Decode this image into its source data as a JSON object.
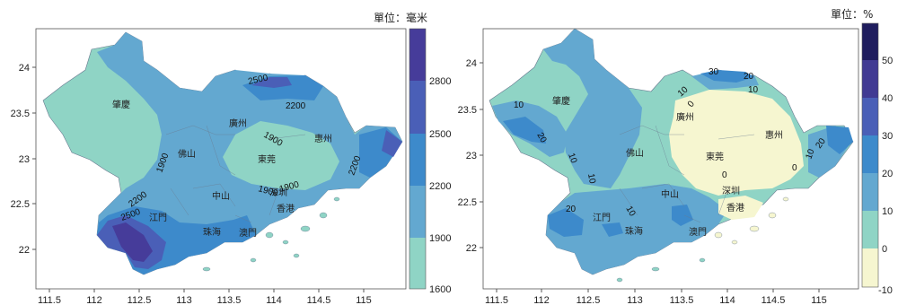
{
  "colors": {
    "left_bands": [
      "#8fd4c5",
      "#63a8d0",
      "#3d8acb",
      "#4a5fb7",
      "#463c9a"
    ],
    "right_bands": [
      "#f6f6d0",
      "#8fd4c5",
      "#63a8d0",
      "#3d8acb",
      "#4a5fb7",
      "#413a93",
      "#1f1d5e"
    ],
    "border": "#555555",
    "land_line": "#7a8aa0"
  },
  "left_map": {
    "unit_label": "單位：毫米",
    "x_ticks": [
      "111.5",
      "112",
      "112.5",
      "113",
      "113.5",
      "114",
      "114.5",
      "115"
    ],
    "y_ticks": [
      "24",
      "23.5",
      "23",
      "22.5",
      "22"
    ],
    "colorbar_ticks": [
      "2800",
      "2500",
      "2200",
      "1900",
      "1600"
    ],
    "cities": [
      "肇慶",
      "廣州",
      "惠州",
      "佛山",
      "東莞",
      "中山",
      "江門",
      "珠海",
      "澳門",
      "香港",
      "深圳"
    ],
    "contours": [
      "2500",
      "2200",
      "1900",
      "1900",
      "2200",
      "1900",
      "1900",
      "2200",
      "2500"
    ]
  },
  "right_map": {
    "unit_label": "單位：%",
    "x_ticks": [
      "111.5",
      "112",
      "112.5",
      "113",
      "113.5",
      "114",
      "114.5",
      "115"
    ],
    "y_ticks": [
      "24",
      "23.5",
      "23",
      "22.5",
      "22"
    ],
    "colorbar_ticks": [
      "50",
      "40",
      "30",
      "20",
      "10",
      "0",
      "-10"
    ],
    "cities": [
      "肇慶",
      "廣州",
      "惠州",
      "佛山",
      "東莞",
      "中山",
      "深圳",
      "江門",
      "珠海",
      "澳門",
      "香港"
    ],
    "contours": [
      "30",
      "20",
      "10",
      "10",
      "10",
      "10",
      "20",
      "0",
      "0",
      "20",
      "10",
      "20",
      "10",
      "10",
      "0"
    ]
  },
  "chart_data": [
    {
      "type": "heatmap",
      "unit": "單位：毫米",
      "xticks": [
        111.5,
        112,
        112.5,
        113,
        113.5,
        114,
        114.5,
        115
      ],
      "yticks": [
        24,
        23.5,
        23,
        22.5,
        22
      ],
      "colorbar_levels": [
        1600,
        1900,
        2200,
        2500,
        2800
      ],
      "contour_levels": [
        1900,
        2200,
        2500
      ]
    },
    {
      "type": "heatmap",
      "unit": "單位：%",
      "xticks": [
        111.5,
        112,
        112.5,
        113,
        113.5,
        114,
        114.5,
        115
      ],
      "yticks": [
        24,
        23.5,
        23,
        22.5,
        22
      ],
      "colorbar_levels": [
        -10,
        0,
        10,
        20,
        30,
        40,
        50
      ],
      "contour_levels": [
        0,
        10,
        20,
        30
      ]
    }
  ]
}
